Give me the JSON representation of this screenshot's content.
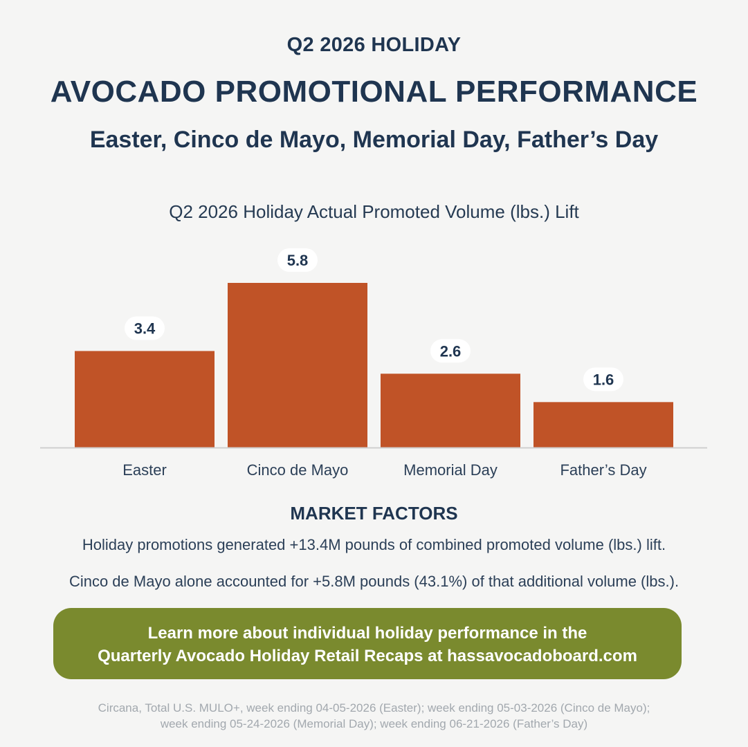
{
  "header": {
    "eyebrow": "Q2 2026 HOLIDAY",
    "headline": "AVOCADO PROMOTIONAL PERFORMANCE",
    "subhead": "Easter, Cinco de Mayo, Memorial Day, Father’s Day"
  },
  "chart_data": {
    "type": "bar",
    "title": "Q2 2026 Holiday Actual Promoted Volume (lbs.) Lift",
    "categories": [
      "Easter",
      "Cinco de Mayo",
      "Memorial Day",
      "Father’s Day"
    ],
    "values": [
      3.4,
      5.8,
      2.6,
      1.6
    ],
    "value_labels": [
      "3.4",
      "5.8",
      "2.6",
      "1.6"
    ],
    "xlabel": "",
    "ylabel": "",
    "ylim": [
      0,
      5.8
    ],
    "grid": false,
    "colors": {
      "bar": "#c05327",
      "label_pill": "#ffffff"
    }
  },
  "market_factors": {
    "title": "MARKET FACTORS",
    "lines": [
      "Holiday promotions generated +13.4M pounds of combined promoted volume (lbs.) lift.",
      "Cinco de Mayo alone accounted for +5.8M pounds (43.1%) of that additional volume (lbs.)."
    ]
  },
  "cta": {
    "line1": "Learn more about individual holiday performance in the",
    "line2": "Quarterly Avocado Holiday Retail Recaps at hassavocadoboard.com",
    "color": "#7a8a2e"
  },
  "source": {
    "line1": "Circana, Total U.S. MULO+, week ending 04-05-2026 (Easter); week ending 05-03-2026 (Cinco de Mayo);",
    "line2": "week ending 05-24-2026 (Memorial Day); week ending 06-21-2026 (Father’s Day)"
  }
}
